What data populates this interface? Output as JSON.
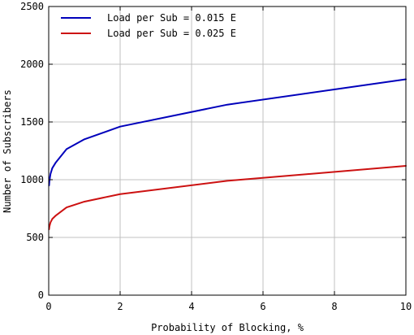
{
  "chart_data": {
    "type": "line",
    "title": "",
    "xlabel": "Probability of Blocking, %",
    "ylabel": "Number of Subscribers",
    "xlim": [
      0,
      10
    ],
    "ylim": [
      0,
      2500
    ],
    "xticks": [
      0,
      2,
      4,
      6,
      8,
      10
    ],
    "yticks": [
      0,
      500,
      1000,
      1500,
      2000,
      2500
    ],
    "grid": true,
    "legend_position": "top-left",
    "series": [
      {
        "name": "Load per Sub = 0.015 E",
        "color": "#0000bb",
        "x": [
          0.01,
          0.02,
          0.05,
          0.1,
          0.2,
          0.5,
          1,
          2,
          5,
          10
        ],
        "y": [
          950,
          990,
          1050,
          1100,
          1150,
          1265,
          1350,
          1460,
          1650,
          1870
        ]
      },
      {
        "name": "Load per Sub = 0.025 E",
        "color": "#cc1111",
        "x": [
          0.01,
          0.02,
          0.05,
          0.1,
          0.2,
          0.5,
          1,
          2,
          5,
          10
        ],
        "y": [
          570,
          595,
          630,
          660,
          690,
          760,
          810,
          875,
          990,
          1120
        ]
      }
    ]
  }
}
